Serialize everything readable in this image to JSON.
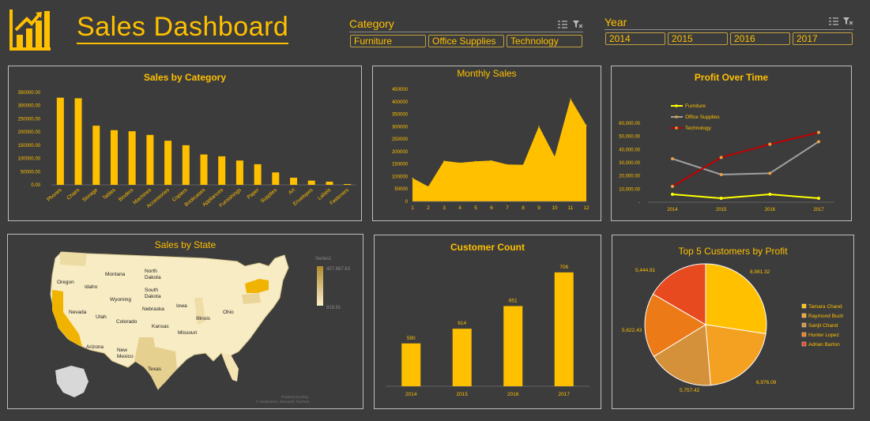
{
  "header": {
    "title": "Sales Dashboard",
    "logo_icon": "bar-chart-growth-icon"
  },
  "slicers": {
    "category": {
      "title": "Category",
      "items": [
        "Furniture",
        "Office Supplies",
        "Technology"
      ]
    },
    "year": {
      "title": "Year",
      "items": [
        "2014",
        "2015",
        "2016",
        "2017"
      ]
    },
    "icons": [
      "multi-select-icon",
      "clear-filter-icon"
    ]
  },
  "colors": {
    "background": "#3c3c3c",
    "accent": "#ffc000",
    "furniture": "#ffff00",
    "office_supplies": "#a0a0a0",
    "technology": "#c00000"
  },
  "chart_data": [
    {
      "id": "sales_by_category",
      "type": "bar",
      "title": "Sales by Category",
      "categories": [
        "Phones",
        "Chairs",
        "Storage",
        "Tables",
        "Binders",
        "Machines",
        "Accessories",
        "Copiers",
        "Bookcases",
        "Appliances",
        "Furnishings",
        "Paper",
        "Supplies",
        "Art",
        "Envelopes",
        "Labels",
        "Fasteners"
      ],
      "values": [
        330000,
        328000,
        224000,
        207000,
        203000,
        189000,
        167000,
        150000,
        115000,
        108000,
        92000,
        78000,
        47000,
        27000,
        16000,
        12000,
        3000
      ],
      "y_ticks": [
        "350000.00",
        "300000.00",
        "250000.00",
        "200000.00",
        "150000.00",
        "100000.00",
        "50000.00",
        "0.00"
      ],
      "ylim": [
        0,
        350000
      ]
    },
    {
      "id": "monthly_sales",
      "type": "area",
      "title": "Monthly Sales",
      "x": [
        1,
        2,
        3,
        4,
        5,
        6,
        7,
        8,
        9,
        10,
        11,
        12
      ],
      "values": [
        94000,
        60000,
        163000,
        155000,
        161000,
        164000,
        148000,
        147000,
        302000,
        180000,
        412000,
        305000
      ],
      "y_ticks": [
        "450000",
        "400000",
        "350000",
        "300000",
        "250000",
        "200000",
        "150000",
        "100000",
        "50000",
        "0"
      ],
      "ylim": [
        0,
        450000
      ]
    },
    {
      "id": "profit_over_time",
      "type": "line",
      "title": "Profit Over Time",
      "categories": [
        "2014",
        "2015",
        "2016",
        "2017"
      ],
      "y_ticks": [
        "60,000.00",
        "50,000.00",
        "40,000.00",
        "30,000.00",
        "20,000.00",
        "10,000.00",
        "-"
      ],
      "ylim": [
        0,
        60000
      ],
      "series": [
        {
          "name": "Furniture",
          "values": [
            6000,
            3000,
            6000,
            3000
          ]
        },
        {
          "name": "Office Supplies",
          "values": [
            33000,
            21000,
            22000,
            46000
          ]
        },
        {
          "name": "Technology",
          "values": [
            12000,
            34000,
            44000,
            53000
          ]
        }
      ]
    },
    {
      "id": "sales_by_state",
      "type": "map",
      "title": "Sales by State",
      "legend_title": "Series1",
      "legend_max": "457,687.63",
      "legend_min": "919.91",
      "state_labels": [
        "Oregon",
        "Idaho",
        "Montana",
        "North Dakota",
        "South Dakota",
        "Wyoming",
        "Nebraska",
        "Iowa",
        "Illinois",
        "Ohio",
        "Nevada",
        "Utah",
        "Colorado",
        "Kansas",
        "Missouri",
        "Arizona",
        "New Mexico",
        "Texas"
      ],
      "attribution_1": "Powered by Bing",
      "attribution_2": "© GeoNames, Microsoft, TomTom"
    },
    {
      "id": "customer_count",
      "type": "bar",
      "title": "Customer Count",
      "categories": [
        "2014",
        "2015",
        "2016",
        "2017"
      ],
      "values": [
        590,
        614,
        651,
        706
      ],
      "data_labels": [
        "590",
        "614",
        "651",
        "706"
      ]
    },
    {
      "id": "top5_customers",
      "type": "pie",
      "title": "Top 5 Customers by Profit",
      "slices": [
        {
          "name": "Tamara Chand",
          "value": 8981.32,
          "label": "8,981.32",
          "color": "#ffc000"
        },
        {
          "name": "Raymond Buch",
          "value": 6976.09,
          "label": "6,976.09",
          "color": "#f4a020"
        },
        {
          "name": "Sanjit Chand",
          "value": 5757.42,
          "label": "5,757.42",
          "color": "#d4913a"
        },
        {
          "name": "Hunter Lopez",
          "value": 5622.43,
          "label": "5,622.43",
          "color": "#ec7a16"
        },
        {
          "name": "Adrian Barton",
          "value": 5444.81,
          "label": "5,444.81",
          "color": "#e64a1e"
        }
      ]
    }
  ]
}
